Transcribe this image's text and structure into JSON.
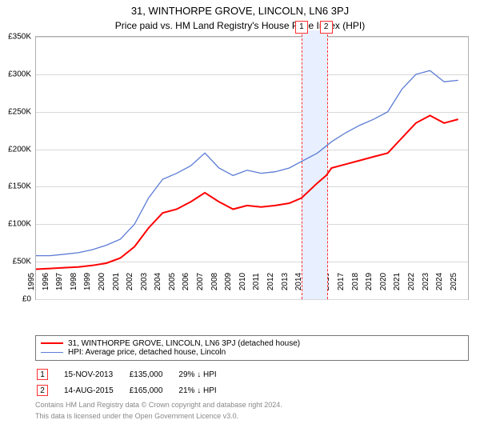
{
  "title": "31, WINTHORPE GROVE, LINCOLN, LN6 3PJ",
  "subtitle": "Price paid vs. HM Land Registry's House Price Index (HPI)",
  "chart": {
    "type": "line",
    "background_color": "#ffffff",
    "grid_color": "#d9d9d9",
    "border_color": "#b0b0b0",
    "x": {
      "min": 1995,
      "max": 2025.7,
      "ticks": [
        "1995",
        "1996",
        "1997",
        "1998",
        "1999",
        "2000",
        "2001",
        "2002",
        "2003",
        "2004",
        "2005",
        "2006",
        "2007",
        "2008",
        "2009",
        "2010",
        "2011",
        "2012",
        "2013",
        "2014",
        "2015",
        "2016",
        "2017",
        "2018",
        "2019",
        "2020",
        "2021",
        "2022",
        "2023",
        "2024",
        "2025"
      ]
    },
    "y": {
      "min": 0,
      "max": 350000,
      "ticks": [
        {
          "v": 0,
          "label": "£0"
        },
        {
          "v": 50000,
          "label": "£50K"
        },
        {
          "v": 100000,
          "label": "£100K"
        },
        {
          "v": 150000,
          "label": "£150K"
        },
        {
          "v": 200000,
          "label": "£200K"
        },
        {
          "v": 250000,
          "label": "£250K"
        },
        {
          "v": 300000,
          "label": "£300K"
        },
        {
          "v": 350000,
          "label": "£350K"
        }
      ],
      "tick_fontsize": 10
    },
    "events_band": {
      "start": 2013.87,
      "end": 2015.62,
      "fill": "#e8efff",
      "dash_color": "#ff3030"
    },
    "event_markers": [
      {
        "num": "1",
        "x": 2013.87
      },
      {
        "num": "2",
        "x": 2015.62
      }
    ],
    "series": [
      {
        "name": "subject",
        "label": "31, WINTHORPE GROVE, LINCOLN, LN6 3PJ (detached house)",
        "color": "#ff0000",
        "line_width": 2,
        "points": [
          [
            1995,
            40000
          ],
          [
            1996,
            41000
          ],
          [
            1997,
            42000
          ],
          [
            1998,
            43000
          ],
          [
            1999,
            45000
          ],
          [
            2000,
            48000
          ],
          [
            2001,
            55000
          ],
          [
            2002,
            70000
          ],
          [
            2003,
            95000
          ],
          [
            2004,
            115000
          ],
          [
            2005,
            120000
          ],
          [
            2006,
            130000
          ],
          [
            2007,
            142000
          ],
          [
            2008,
            130000
          ],
          [
            2009,
            120000
          ],
          [
            2010,
            125000
          ],
          [
            2011,
            123000
          ],
          [
            2012,
            125000
          ],
          [
            2013,
            128000
          ],
          [
            2013.87,
            135000
          ],
          [
            2015,
            155000
          ],
          [
            2015.62,
            165000
          ],
          [
            2016,
            175000
          ],
          [
            2017,
            180000
          ],
          [
            2018,
            185000
          ],
          [
            2019,
            190000
          ],
          [
            2020,
            195000
          ],
          [
            2021,
            215000
          ],
          [
            2022,
            235000
          ],
          [
            2023,
            245000
          ],
          [
            2024,
            235000
          ],
          [
            2025,
            240000
          ]
        ]
      },
      {
        "name": "hpi",
        "label": "HPI: Average price, detached house, Lincoln",
        "color": "#5b7bd5",
        "line_width": 1.3,
        "points": [
          [
            1995,
            58000
          ],
          [
            1996,
            58000
          ],
          [
            1997,
            60000
          ],
          [
            1998,
            62000
          ],
          [
            1999,
            66000
          ],
          [
            2000,
            72000
          ],
          [
            2001,
            80000
          ],
          [
            2002,
            100000
          ],
          [
            2003,
            135000
          ],
          [
            2004,
            160000
          ],
          [
            2005,
            168000
          ],
          [
            2006,
            178000
          ],
          [
            2007,
            195000
          ],
          [
            2008,
            175000
          ],
          [
            2009,
            165000
          ],
          [
            2010,
            172000
          ],
          [
            2011,
            168000
          ],
          [
            2012,
            170000
          ],
          [
            2013,
            175000
          ],
          [
            2014,
            185000
          ],
          [
            2015,
            195000
          ],
          [
            2016,
            210000
          ],
          [
            2017,
            222000
          ],
          [
            2018,
            232000
          ],
          [
            2019,
            240000
          ],
          [
            2020,
            250000
          ],
          [
            2021,
            280000
          ],
          [
            2022,
            300000
          ],
          [
            2023,
            305000
          ],
          [
            2024,
            290000
          ],
          [
            2025,
            292000
          ]
        ]
      }
    ]
  },
  "legend": {
    "items": [
      {
        "color": "#ff0000",
        "width": 2,
        "label": "31, WINTHORPE GROVE, LINCOLN, LN6 3PJ (detached house)"
      },
      {
        "color": "#5b7bd5",
        "width": 1.3,
        "label": "HPI: Average price, detached house, Lincoln"
      }
    ]
  },
  "events": [
    {
      "num": "1",
      "date": "15-NOV-2013",
      "price": "£135,000",
      "delta": "29% ↓ HPI",
      "border": "#ff3030"
    },
    {
      "num": "2",
      "date": "14-AUG-2015",
      "price": "£165,000",
      "delta": "21% ↓ HPI",
      "border": "#ff3030"
    }
  ],
  "footnote1": "Contains HM Land Registry data © Crown copyright and database right 2024.",
  "footnote2": "This data is licensed under the Open Government Licence v3.0."
}
